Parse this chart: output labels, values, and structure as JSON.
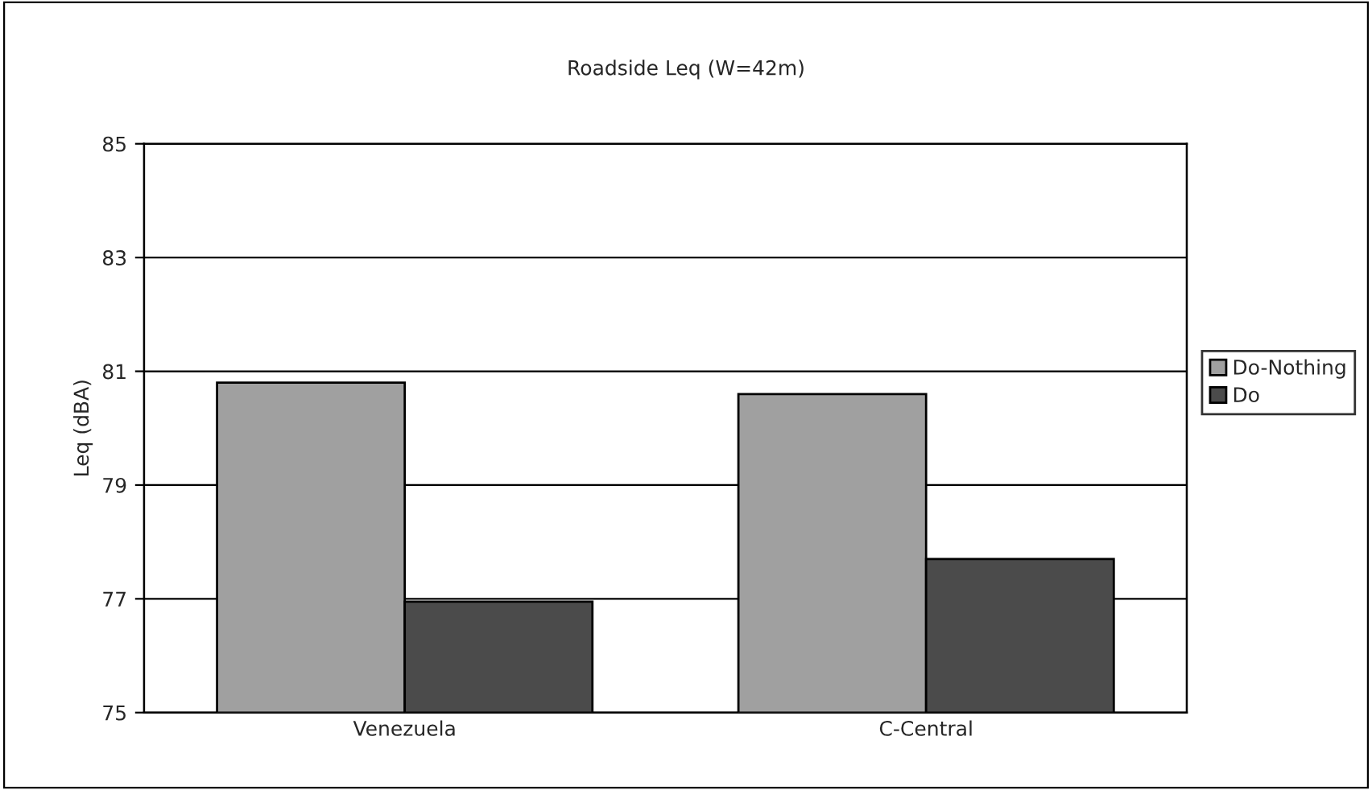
{
  "chart_data": {
    "type": "bar",
    "title": "Roadside Leq (W=42m)",
    "ylabel": "Leq (dBA)",
    "categories": [
      "Venezuela",
      "C-Central"
    ],
    "series": [
      {
        "name": "Do-Nothing",
        "color": "#a0a0a0",
        "values": [
          80.8,
          80.6
        ]
      },
      {
        "name": "Do",
        "color": "#4b4b4b",
        "values": [
          76.95,
          77.7
        ]
      }
    ],
    "ylim": [
      75,
      85
    ],
    "yticks": [
      75,
      77,
      79,
      81,
      83,
      85
    ],
    "grid": "y",
    "legend": "right"
  }
}
